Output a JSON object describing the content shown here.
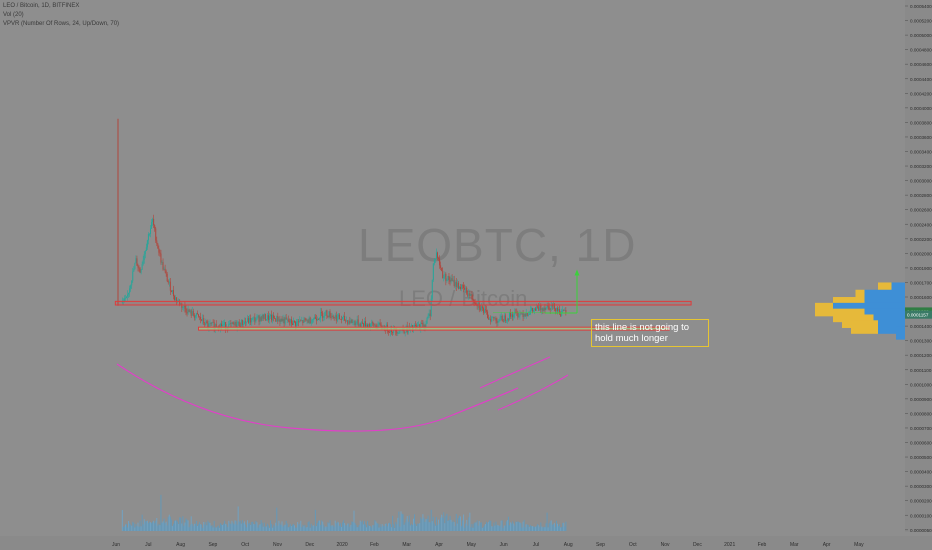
{
  "legend": {
    "symbol_line": "LEO / Bitcoin, 1D, BITFINEX",
    "volume_line": "Vol (20)",
    "vpvr_line": "VPVR (Number Of Rows, 24, Up/Down, 70)"
  },
  "watermark": {
    "ticker": "LEOBTC, 1D",
    "pair": "LEO / Bitcoin"
  },
  "annotation_text": "this line is not going to hold much longer",
  "colors": {
    "background": "#8e8e8e",
    "candle_up": "#26a69a",
    "candle_down": "#b0463c",
    "resistance_box": "#e03a3a",
    "support_box": "#9fce8a",
    "curve": "#e040c8",
    "arrow": "#3bd13b",
    "annotation_border": "#e6c532",
    "vpvr_up": "#3e8fd6",
    "vpvr_down": "#e6b93a"
  },
  "chart_data": {
    "type": "candlestick",
    "symbol": "LEO / Bitcoin",
    "interval": "1D",
    "exchange": "BITFINEX",
    "x_ticks": [
      "Jun",
      "Jul",
      "Aug",
      "Sep",
      "Oct",
      "Nov",
      "Dec",
      "2020",
      "Feb",
      "Mar",
      "Apr",
      "May",
      "Jun",
      "Jul",
      "Aug",
      "Sep",
      "Oct",
      "Nov",
      "Dec",
      "2021",
      "Feb",
      "Mar",
      "Apr",
      "May"
    ],
    "y_ticks": [
      "0.0005400",
      "0.0005200",
      "0.0005000",
      "0.0004800",
      "0.0004600",
      "0.0004400",
      "0.0004200",
      "0.0004000",
      "0.0003800",
      "0.0003600",
      "0.0003400",
      "0.0003200",
      "0.0003000",
      "0.0002800",
      "0.0002600",
      "0.0002400",
      "0.0002200",
      "0.0002000",
      "0.0001900",
      "0.0001700",
      "0.0001600",
      "0.0001500",
      "0.0001400",
      "0.0001300",
      "0.0001200",
      "0.0001100",
      "0.0001000",
      "0.0000900",
      "0.0000800",
      "0.0000700",
      "0.0000600",
      "0.0000500",
      "0.0000400",
      "0.0000300",
      "0.0000200",
      "0.0000100",
      "0.0000050"
    ],
    "last_price_label": "0.0001202",
    "second_price_label": "0.0001157",
    "price_path": [
      {
        "date": "2019-05-20",
        "price": 0.000132
      },
      {
        "date": "2019-05-24",
        "price": 0.000136
      },
      {
        "date": "2019-05-28",
        "price": 0.00016
      },
      {
        "date": "2019-06-02",
        "price": 0.00019
      },
      {
        "date": "2019-06-06",
        "price": 0.000175
      },
      {
        "date": "2019-06-10",
        "price": 0.0002
      },
      {
        "date": "2019-06-14",
        "price": 0.000225
      },
      {
        "date": "2019-06-18",
        "price": 0.000245
      },
      {
        "date": "2019-06-22",
        "price": 0.000215
      },
      {
        "date": "2019-06-27",
        "price": 0.000185
      },
      {
        "date": "2019-07-03",
        "price": 0.00016
      },
      {
        "date": "2019-07-09",
        "price": 0.00014
      },
      {
        "date": "2019-07-16",
        "price": 0.000128
      },
      {
        "date": "2019-07-24",
        "price": 0.000118
      },
      {
        "date": "2019-08-01",
        "price": 0.000112
      },
      {
        "date": "2019-08-10",
        "price": 0.0001
      },
      {
        "date": "2019-08-20",
        "price": 0.000102
      },
      {
        "date": "2019-09-01",
        "price": 0.0001
      },
      {
        "date": "2019-09-15",
        "price": 0.000106
      },
      {
        "date": "2019-10-01",
        "price": 0.000112
      },
      {
        "date": "2019-10-15",
        "price": 0.00011
      },
      {
        "date": "2019-11-01",
        "price": 0.000104
      },
      {
        "date": "2019-11-15",
        "price": 0.000108
      },
      {
        "date": "2019-12-01",
        "price": 0.000118
      },
      {
        "date": "2019-12-15",
        "price": 0.00011
      },
      {
        "date": "2020-01-01",
        "price": 0.000104
      },
      {
        "date": "2020-01-20",
        "price": 0.0001
      },
      {
        "date": "2020-02-05",
        "price": 9.4e-05
      },
      {
        "date": "2020-02-20",
        "price": 9.6e-05
      },
      {
        "date": "2020-03-05",
        "price": 0.000102
      },
      {
        "date": "2020-03-10",
        "price": 0.000118
      },
      {
        "date": "2020-03-13",
        "price": 0.000185
      },
      {
        "date": "2020-03-16",
        "price": 0.0002
      },
      {
        "date": "2020-03-22",
        "price": 0.00017
      },
      {
        "date": "2020-04-01",
        "price": 0.00016
      },
      {
        "date": "2020-04-12",
        "price": 0.00015
      },
      {
        "date": "2020-04-25",
        "price": 0.00013
      },
      {
        "date": "2020-05-05",
        "price": 0.000112
      },
      {
        "date": "2020-05-15",
        "price": 0.000108
      },
      {
        "date": "2020-05-28",
        "price": 0.000116
      },
      {
        "date": "2020-06-10",
        "price": 0.000118
      },
      {
        "date": "2020-06-22",
        "price": 0.000124
      },
      {
        "date": "2020-07-01",
        "price": 0.000128
      },
      {
        "date": "2020-07-08",
        "price": 0.000126
      },
      {
        "date": "2020-07-14",
        "price": 0.000117
      },
      {
        "date": "2020-07-18",
        "price": 0.00012
      }
    ],
    "resistance_zone": {
      "from_date": "2019-05-20",
      "to_date": "2020-11-15",
      "price_low": 0.000129,
      "price_high": 0.000134
    },
    "support_zone": {
      "from_date": "2019-08-01",
      "to_date": "2020-10-25",
      "price_low": 9.45e-05,
      "price_high": 9.85e-05
    },
    "target_price": 0.000175,
    "vpvr_rows": [
      {
        "price": 0.00015,
        "up": 0.15,
        "down": 0.15
      },
      {
        "price": 0.00014,
        "up": 0.45,
        "down": 0.1
      },
      {
        "price": 0.00013,
        "up": 0.45,
        "down": 0.35
      },
      {
        "price": 0.000122,
        "up": 0.8,
        "down": 0.2
      },
      {
        "price": 0.000114,
        "up": 0.45,
        "down": 0.35
      },
      {
        "price": 0.000106,
        "up": 0.35,
        "down": 0.35
      },
      {
        "price": 9.8e-05,
        "up": 0.3,
        "down": 0.3
      },
      {
        "price": 9e-05,
        "up": 0.1,
        "down": 0.0
      }
    ]
  }
}
